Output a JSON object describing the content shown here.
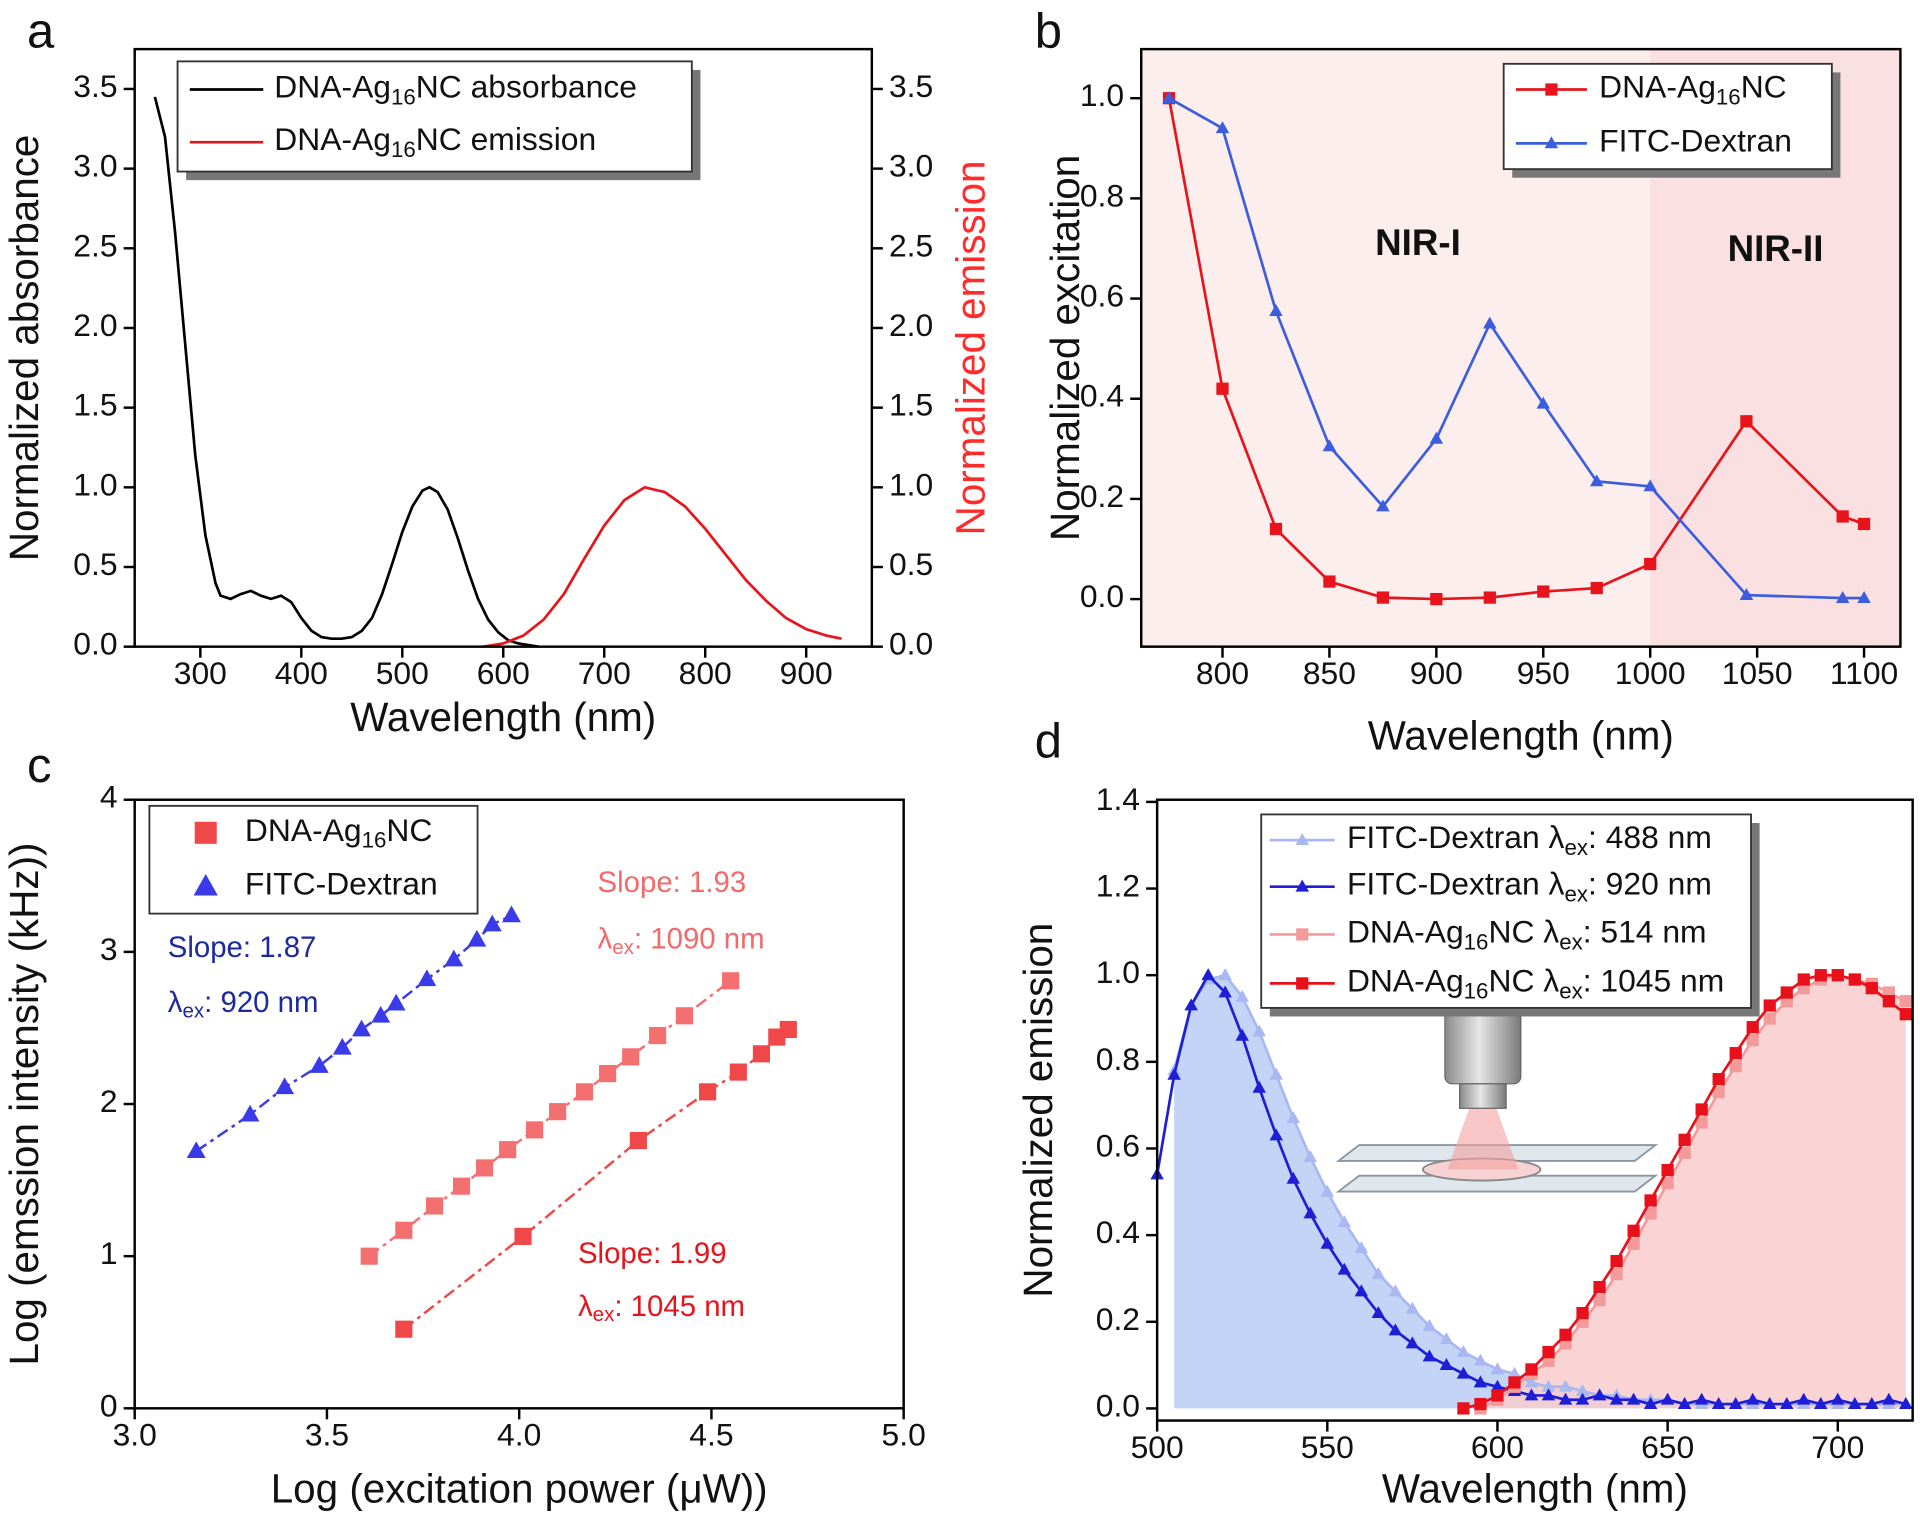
{
  "chart_data": [
    {
      "panel": "a",
      "type": "line",
      "xlabel": "Wavelength (nm)",
      "ylabel": "Normalized absorbance",
      "y2label": "Normalized emission",
      "y2label_color": "#ff2a2a",
      "xlim": [
        235,
        965
      ],
      "ylim": [
        0,
        3.75
      ],
      "y2lim": [
        0,
        3.75
      ],
      "xticks": [
        300,
        400,
        500,
        600,
        700,
        800,
        900
      ],
      "yticks": [
        {
          "value": 0,
          "label": "0.0"
        },
        {
          "value": 0.5,
          "label": "0.5"
        },
        {
          "value": 1,
          "label": "1.0"
        },
        {
          "value": 1.5,
          "label": "1.5"
        },
        {
          "value": 2,
          "label": "2.0"
        },
        {
          "value": 2.5,
          "label": "2.5"
        },
        {
          "value": 3,
          "label": "3.0"
        },
        {
          "value": 3.5,
          "label": "3.5"
        }
      ],
      "y2ticks": [
        {
          "value": 0,
          "label": "0.0"
        },
        {
          "value": 0.5,
          "label": "0.5"
        },
        {
          "value": 1,
          "label": "1.0"
        },
        {
          "value": 1.5,
          "label": "1.5"
        },
        {
          "value": 2,
          "label": "2.0"
        },
        {
          "value": 2.5,
          "label": "2.5"
        },
        {
          "value": 3,
          "label": "3.0"
        },
        {
          "value": 3.5,
          "label": "3.5"
        }
      ],
      "legend": "top-left",
      "series": [
        {
          "name": "DNA-Ag16NC absorbance",
          "color": "#000000",
          "x": [
            255,
            265,
            275,
            285,
            295,
            305,
            315,
            320,
            330,
            340,
            350,
            360,
            370,
            380,
            390,
            400,
            410,
            420,
            430,
            440,
            450,
            460,
            470,
            480,
            490,
            500,
            510,
            520,
            527,
            535,
            545,
            555,
            565,
            575,
            585,
            595,
            605,
            615,
            625,
            635
          ],
          "values": [
            3.45,
            3.2,
            2.6,
            1.9,
            1.2,
            0.7,
            0.4,
            0.32,
            0.3,
            0.33,
            0.35,
            0.32,
            0.3,
            0.32,
            0.28,
            0.18,
            0.1,
            0.06,
            0.05,
            0.05,
            0.06,
            0.1,
            0.18,
            0.33,
            0.52,
            0.72,
            0.88,
            0.98,
            1.0,
            0.97,
            0.86,
            0.68,
            0.48,
            0.3,
            0.17,
            0.09,
            0.04,
            0.02,
            0.01,
            0
          ]
        },
        {
          "name": "DNA-Ag16NC emission",
          "color": "#e8141c",
          "axis": "y2",
          "x": [
            580,
            600,
            620,
            640,
            660,
            680,
            700,
            720,
            740,
            760,
            780,
            800,
            820,
            840,
            860,
            880,
            900,
            920,
            935
          ],
          "values": [
            0,
            0.02,
            0.07,
            0.17,
            0.33,
            0.55,
            0.76,
            0.92,
            1.0,
            0.97,
            0.88,
            0.74,
            0.58,
            0.42,
            0.29,
            0.18,
            0.11,
            0.07,
            0.05
          ]
        }
      ]
    },
    {
      "panel": "b",
      "type": "line",
      "xlabel": "Wavelength (nm)",
      "ylabel": "Normalized excitation",
      "xlim": [
        762,
        1117
      ],
      "ylim": [
        -0.095,
        1.098
      ],
      "xticks": [
        800,
        850,
        900,
        950,
        1000,
        1050,
        1100
      ],
      "yticks": [
        {
          "value": 0,
          "label": "0.0"
        },
        {
          "value": 0.2,
          "label": "0.2"
        },
        {
          "value": 0.4,
          "label": "0.4"
        },
        {
          "value": 0.6,
          "label": "0.6"
        },
        {
          "value": 0.8,
          "label": "0.8"
        },
        {
          "value": 1,
          "label": "1.0"
        }
      ],
      "legend": "top-right",
      "regions": [
        {
          "label": "NIR-I",
          "range": [
            762,
            1000
          ],
          "color": "#fdeeee"
        },
        {
          "label": "NIR-II",
          "range": [
            1000,
            1117
          ],
          "color": "#fae0e0"
        }
      ],
      "series": [
        {
          "name": "DNA-Ag16NC",
          "color": "#e8141c",
          "marker": "square",
          "x": [
            775,
            800,
            825,
            850,
            875,
            900,
            925,
            950,
            975,
            1000,
            1045,
            1090,
            1100
          ],
          "values": [
            1.0,
            0.42,
            0.14,
            0.035,
            0.003,
            0.0,
            0.003,
            0.015,
            0.022,
            0.07,
            0.355,
            0.165,
            0.15
          ]
        },
        {
          "name": "FITC-Dextran",
          "color": "#3c5de0",
          "marker": "triangle",
          "x": [
            775,
            800,
            825,
            850,
            875,
            900,
            925,
            950,
            975,
            1000,
            1045,
            1090,
            1100
          ],
          "values": [
            1.0,
            0.94,
            0.575,
            0.305,
            0.185,
            0.32,
            0.55,
            0.39,
            0.235,
            0.225,
            0.008,
            0.002,
            0.002
          ]
        }
      ]
    },
    {
      "panel": "c",
      "type": "scatter",
      "xlabel": "Log (excitation power (μW))",
      "ylabel": "Log (emssion intensity (kHz))",
      "xlim": [
        3,
        5
      ],
      "ylim": [
        0,
        4
      ],
      "xticks": [
        {
          "value": 3,
          "label": "3.0"
        },
        {
          "value": 3.5,
          "label": "3.5"
        },
        {
          "value": 4,
          "label": "4.0"
        },
        {
          "value": 4.5,
          "label": "4.5"
        },
        {
          "value": 5,
          "label": "5.0"
        }
      ],
      "yticks": [
        0,
        1,
        2,
        3,
        4
      ],
      "legend": "top-left",
      "series": [
        {
          "name": "DNA-Ag16NC",
          "color": "#f04848",
          "marker": "square",
          "fit": "dash-dot",
          "x": [
            3.7,
            4.01,
            4.31,
            4.49,
            4.57,
            4.63,
            4.67,
            4.7
          ],
          "values": [
            0.52,
            1.13,
            1.76,
            2.08,
            2.21,
            2.33,
            2.44,
            2.49
          ]
        },
        {
          "name": "FITC-Dextran",
          "color": "#3a3ae8",
          "marker": "triangle",
          "fit": "dash-dot",
          "x": [
            3.16,
            3.3,
            3.39,
            3.48,
            3.54,
            3.59,
            3.64,
            3.68,
            3.76,
            3.83,
            3.89,
            3.93,
            3.98
          ],
          "values": [
            1.69,
            1.93,
            2.11,
            2.25,
            2.37,
            2.49,
            2.58,
            2.66,
            2.82,
            2.95,
            3.08,
            3.18,
            3.24
          ]
        },
        {
          "color": "#f47070",
          "marker": "square",
          "fit": "dash-dot",
          "x": [
            3.61,
            3.7,
            3.78,
            3.85,
            3.91,
            3.97,
            4.04,
            4.1,
            4.17,
            4.23,
            4.29,
            4.36,
            4.43,
            4.55
          ],
          "values": [
            1.0,
            1.17,
            1.33,
            1.46,
            1.58,
            1.7,
            1.83,
            1.95,
            2.08,
            2.2,
            2.31,
            2.45,
            2.58,
            2.81
          ]
        }
      ],
      "annotations": [
        {
          "text": "Slope: 1.87",
          "color": "#1c2a9c"
        },
        {
          "text": "λex: 920 nm",
          "color": "#1c2a9c"
        },
        {
          "text": "Slope: 1.93",
          "color": "#f46a6a"
        },
        {
          "text": "λex: 1090 nm",
          "color": "#f46a6a"
        },
        {
          "text": "Slope: 1.99",
          "color": "#e8141c"
        },
        {
          "text": "λex: 1045 nm",
          "color": "#e8141c"
        }
      ]
    },
    {
      "panel": "d",
      "type": "line",
      "xlabel": "Wavelength (nm)",
      "ylabel": "Normalized emission",
      "xlim": [
        500,
        722
      ],
      "ylim": [
        -0.028,
        1.405
      ],
      "xticks": [
        500,
        550,
        600,
        650,
        700
      ],
      "yticks": [
        {
          "value": 0,
          "label": "0.0"
        },
        {
          "value": 0.2,
          "label": "0.2"
        },
        {
          "value": 0.4,
          "label": "0.4"
        },
        {
          "value": 0.6,
          "label": "0.6"
        },
        {
          "value": 0.8,
          "label": "0.8"
        },
        {
          "value": 1,
          "label": "1.0"
        },
        {
          "value": 1.2,
          "label": "1.2"
        },
        {
          "value": 1.4,
          "label": "1.4"
        }
      ],
      "legend": "top-center",
      "x": [
        500,
        505,
        510,
        515,
        520,
        525,
        530,
        535,
        540,
        545,
        550,
        555,
        560,
        565,
        570,
        575,
        580,
        585,
        590,
        595,
        600,
        605,
        610,
        615,
        620,
        625,
        630,
        635,
        640,
        645,
        650,
        655,
        660,
        665,
        670,
        675,
        680,
        685,
        690,
        695,
        700,
        705,
        710,
        715,
        720
      ],
      "series": [
        {
          "name": "FITC-Dextran λex: 488 nm",
          "color": "#a9b8f0",
          "marker": "triangle",
          "fill": "#b9cdf5",
          "values": [
            null,
            0.78,
            0.93,
            0.99,
            1.0,
            0.95,
            0.87,
            0.77,
            0.67,
            0.58,
            0.5,
            0.43,
            0.37,
            0.31,
            0.27,
            0.23,
            0.19,
            0.16,
            0.13,
            0.11,
            0.09,
            0.08,
            0.06,
            0.05,
            0.05,
            0.04,
            0.03,
            0.03,
            0.02,
            0.02,
            0.02,
            0.01,
            0.01,
            0.01,
            0.01,
            0.01,
            0.01,
            0.01,
            0.01,
            0.01,
            0.01,
            0.01,
            0.01,
            0.01,
            0.01
          ]
        },
        {
          "name": "FITC-Dextran λex: 920 nm",
          "color": "#1e1ed6",
          "marker": "triangle",
          "values": [
            0.54,
            0.77,
            0.93,
            1.0,
            0.96,
            0.86,
            0.74,
            0.63,
            0.53,
            0.45,
            0.38,
            0.32,
            0.27,
            0.22,
            0.18,
            0.15,
            0.12,
            0.1,
            0.08,
            0.06,
            0.05,
            0.04,
            0.03,
            0.03,
            0.02,
            0.02,
            0.03,
            0.02,
            0.02,
            0.01,
            0.02,
            0.01,
            0.02,
            0.01,
            0.01,
            0.02,
            0.01,
            0.01,
            0.02,
            0.01,
            0.02,
            0.01,
            0.01,
            0.02,
            0.01
          ]
        },
        {
          "name": "DNA-Ag16NC λex: 514 nm",
          "color": "#f49a9a",
          "marker": "square",
          "fill": "#f9cdcd",
          "values": [
            null,
            null,
            null,
            null,
            null,
            null,
            null,
            null,
            null,
            null,
            null,
            null,
            null,
            null,
            null,
            null,
            null,
            null,
            null,
            0.0,
            0.02,
            0.05,
            0.08,
            0.11,
            0.15,
            0.2,
            0.25,
            0.31,
            0.38,
            0.45,
            0.52,
            0.59,
            0.66,
            0.73,
            0.79,
            0.85,
            0.9,
            0.94,
            0.97,
            0.99,
            1.0,
            0.99,
            0.98,
            0.96,
            0.94
          ]
        },
        {
          "name": "DNA-Ag16NC λex: 1045 nm",
          "color": "#e8101a",
          "marker": "square",
          "values": [
            null,
            null,
            null,
            null,
            null,
            null,
            null,
            null,
            null,
            null,
            null,
            null,
            null,
            null,
            null,
            null,
            null,
            null,
            0.0,
            0.01,
            0.03,
            0.06,
            0.09,
            0.13,
            0.17,
            0.22,
            0.28,
            0.34,
            0.41,
            0.48,
            0.55,
            0.62,
            0.69,
            0.76,
            0.82,
            0.88,
            0.93,
            0.96,
            0.99,
            1.0,
            1.0,
            0.99,
            0.97,
            0.94,
            0.91
          ]
        }
      ]
    }
  ]
}
